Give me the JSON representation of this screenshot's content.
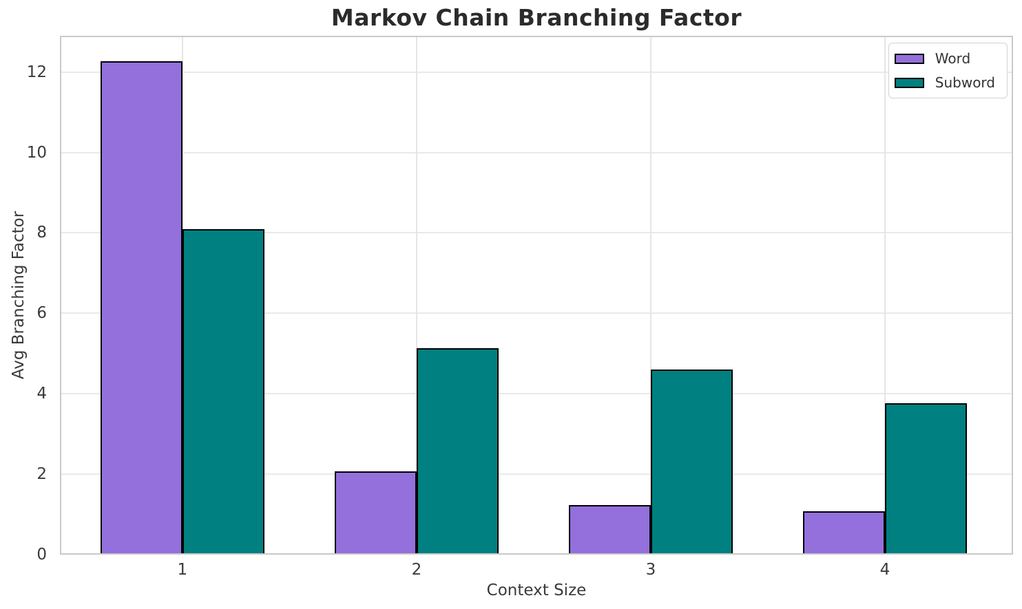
{
  "chart_data": {
    "type": "bar",
    "title": "Markov Chain Branching Factor",
    "xlabel": "Context Size",
    "ylabel": "Avg Branching Factor",
    "categories": [
      1,
      2,
      3,
      4
    ],
    "series": [
      {
        "name": "Word",
        "color": "#9370DB",
        "values": [
          12.26,
          2.07,
          1.24,
          1.08
        ]
      },
      {
        "name": "Subword",
        "color": "#008080",
        "values": [
          8.1,
          5.14,
          4.6,
          3.76
        ]
      }
    ],
    "bar_width": 0.35,
    "bar_edge_color": "#000000",
    "xlim": [
      0.477,
      4.547
    ],
    "ylim": [
      0,
      12.9
    ],
    "xticks": [
      1,
      2,
      3,
      4
    ],
    "yticks": [
      0,
      2,
      4,
      6,
      8,
      10,
      12
    ],
    "grid": true,
    "legend_position": "upper right",
    "colors": {
      "background": "#ffffff",
      "grid": "#e9e9e9",
      "spine": "#c9c9c9",
      "tick_text": "#3a3a3a",
      "title_text": "#2b2b2b"
    }
  }
}
